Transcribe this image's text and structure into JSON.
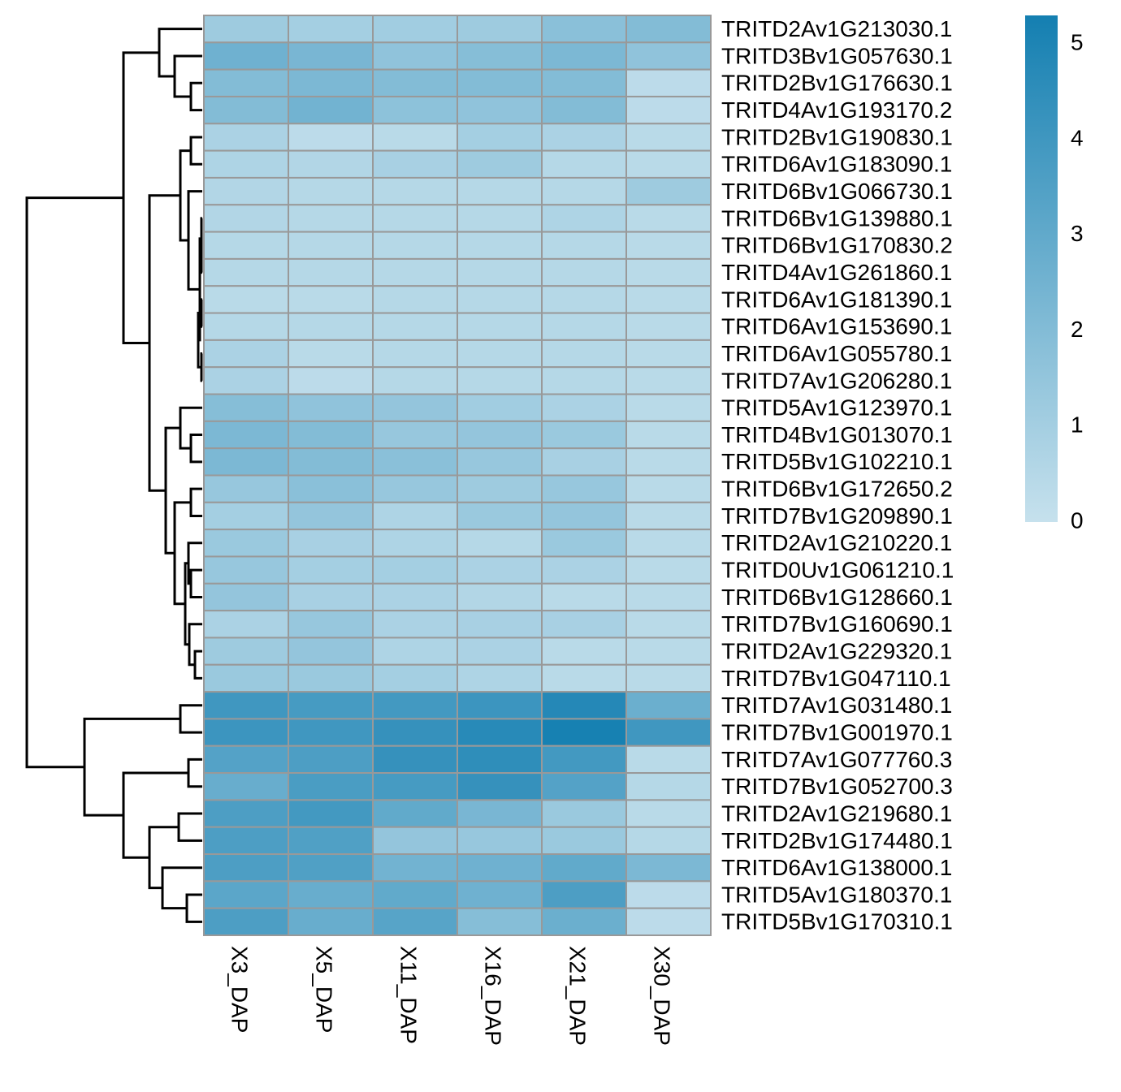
{
  "chart_data": {
    "type": "heatmap",
    "rows": [
      "TRITD2Av1G213030.1",
      "TRITD3Bv1G057630.1",
      "TRITD2Bv1G176630.1",
      "TRITD4Av1G193170.2",
      "TRITD2Bv1G190830.1",
      "TRITD6Av1G183090.1",
      "TRITD6Bv1G066730.1",
      "TRITD6Bv1G139880.1",
      "TRITD6Bv1G170830.2",
      "TRITD4Av1G261860.1",
      "TRITD6Av1G181390.1",
      "TRITD6Av1G153690.1",
      "TRITD6Av1G055780.1",
      "TRITD7Av1G206280.1",
      "TRITD5Av1G123970.1",
      "TRITD4Bv1G013070.1",
      "TRITD5Bv1G102210.1",
      "TRITD6Bv1G172650.2",
      "TRITD7Bv1G209890.1",
      "TRITD2Av1G210220.1",
      "TRITD0Uv1G061210.1",
      "TRITD6Bv1G128660.1",
      "TRITD7Bv1G160690.1",
      "TRITD2Av1G229320.1",
      "TRITD7Bv1G047110.1",
      "TRITD7Av1G031480.1",
      "TRITD7Bv1G001970.1",
      "TRITD7Av1G077760.3",
      "TRITD7Bv1G052700.3",
      "TRITD2Av1G219680.1",
      "TRITD2Bv1G174480.1",
      "TRITD6Av1G138000.1",
      "TRITD5Av1G180370.1",
      "TRITD5Bv1G170310.1"
    ],
    "columns": [
      "X3_DAP",
      "X5_DAP",
      "X11_DAP",
      "X16_DAP",
      "X21_DAP",
      "X30_DAP"
    ],
    "values": [
      [
        1.2,
        1.0,
        1.1,
        1.2,
        1.8,
        2.0
      ],
      [
        2.6,
        2.3,
        1.6,
        1.9,
        2.2,
        1.6
      ],
      [
        2.0,
        2.2,
        2.0,
        2.0,
        2.0,
        0.3
      ],
      [
        2.0,
        2.5,
        1.7,
        1.6,
        2.0,
        0.3
      ],
      [
        0.8,
        0.3,
        0.4,
        1.0,
        0.8,
        0.4
      ],
      [
        0.7,
        0.6,
        0.9,
        1.2,
        0.5,
        0.4
      ],
      [
        0.6,
        0.5,
        0.5,
        0.5,
        0.5,
        1.2
      ],
      [
        0.6,
        0.5,
        0.5,
        0.5,
        0.7,
        0.4
      ],
      [
        0.5,
        0.5,
        0.5,
        0.5,
        0.5,
        0.4
      ],
      [
        0.5,
        0.5,
        0.5,
        0.5,
        0.5,
        0.4
      ],
      [
        0.4,
        0.4,
        0.5,
        0.5,
        0.5,
        0.4
      ],
      [
        0.5,
        0.5,
        0.5,
        0.5,
        0.5,
        0.4
      ],
      [
        0.8,
        0.4,
        0.5,
        0.5,
        0.5,
        0.4
      ],
      [
        0.8,
        0.3,
        0.5,
        0.5,
        0.5,
        0.4
      ],
      [
        1.9,
        1.6,
        1.5,
        1.1,
        0.8,
        0.4
      ],
      [
        2.2,
        2.0,
        1.4,
        1.5,
        1.3,
        0.4
      ],
      [
        2.2,
        2.0,
        1.8,
        1.4,
        0.9,
        0.4
      ],
      [
        1.4,
        1.8,
        1.4,
        1.2,
        1.4,
        0.4
      ],
      [
        1.0,
        1.5,
        0.7,
        1.3,
        1.5,
        0.4
      ],
      [
        1.3,
        0.9,
        0.7,
        0.5,
        1.3,
        0.4
      ],
      [
        1.4,
        1.0,
        1.0,
        0.8,
        0.8,
        0.4
      ],
      [
        1.5,
        0.9,
        0.8,
        0.6,
        0.4,
        0.4
      ],
      [
        0.8,
        1.4,
        0.8,
        0.9,
        0.9,
        0.4
      ],
      [
        1.2,
        1.5,
        0.7,
        0.8,
        0.4,
        0.4
      ],
      [
        1.3,
        1.3,
        1.0,
        0.7,
        0.4,
        0.4
      ],
      [
        4.0,
        3.8,
        3.9,
        4.1,
        4.8,
        2.7
      ],
      [
        4.1,
        4.0,
        4.3,
        4.7,
        5.2,
        4.0
      ],
      [
        3.4,
        3.6,
        4.3,
        4.5,
        3.9,
        0.4
      ],
      [
        2.8,
        3.7,
        3.8,
        4.3,
        3.4,
        0.5
      ],
      [
        3.6,
        3.9,
        3.0,
        2.3,
        1.3,
        0.4
      ],
      [
        3.6,
        3.5,
        1.5,
        1.4,
        1.3,
        0.5
      ],
      [
        3.6,
        3.5,
        2.5,
        2.6,
        3.0,
        2.2
      ],
      [
        3.2,
        2.8,
        3.0,
        2.6,
        3.6,
        0.3
      ],
      [
        3.6,
        2.8,
        3.3,
        1.9,
        2.7,
        0.3
      ]
    ],
    "colors": [
      "#c6e1ed",
      "#147fb1"
    ],
    "zlim": [
      0,
      5.3
    ],
    "zticks": [
      0,
      1,
      2,
      3,
      4,
      5
    ]
  }
}
